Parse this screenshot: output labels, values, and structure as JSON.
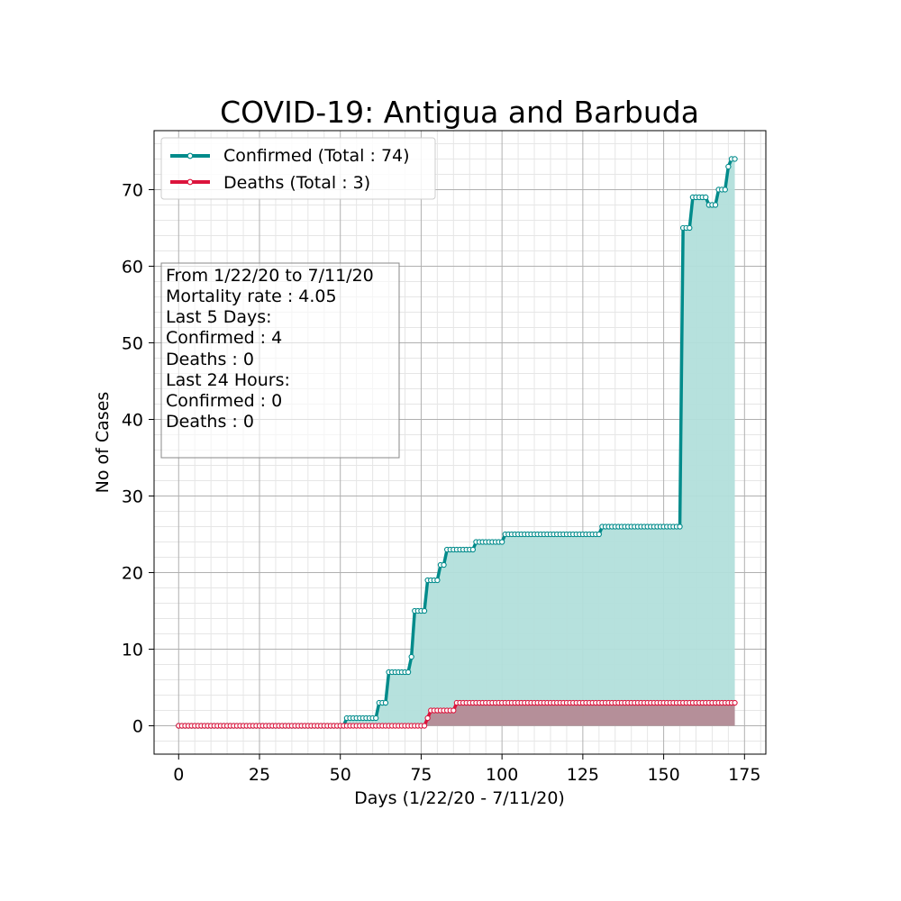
{
  "chart_data": {
    "type": "line",
    "title": "COVID-19: Antigua and Barbuda",
    "xlabel": "Days (1/22/20 - 7/11/20)",
    "ylabel": "No of Cases",
    "xlim": [
      -7.6,
      181.6
    ],
    "ylim": [
      -3.7,
      77.7
    ],
    "x_ticks": [
      0,
      25,
      50,
      75,
      100,
      125,
      150,
      175
    ],
    "y_ticks": [
      0,
      10,
      20,
      30,
      40,
      50,
      60,
      70
    ],
    "grid": true,
    "legend_position": "top-left",
    "series": [
      {
        "name": "Confirmed (Total : 74)",
        "color": "#008B8B",
        "fill": "#b2dfdb",
        "steps": [
          [
            0,
            0
          ],
          [
            52,
            1
          ],
          [
            62,
            3
          ],
          [
            65,
            7
          ],
          [
            72,
            9
          ],
          [
            73,
            15
          ],
          [
            77,
            19
          ],
          [
            81,
            21
          ],
          [
            83,
            23
          ],
          [
            92,
            24
          ],
          [
            101,
            25
          ],
          [
            131,
            26
          ],
          [
            156,
            65
          ],
          [
            159,
            69
          ],
          [
            164,
            68
          ],
          [
            167,
            70
          ],
          [
            170,
            73
          ],
          [
            171,
            74
          ]
        ],
        "last_day": 172
      },
      {
        "name": "Deaths (Total : 3)",
        "color": "#DC143C",
        "fill": "#b58a95",
        "steps": [
          [
            0,
            0
          ],
          [
            77,
            1
          ],
          [
            78,
            2
          ],
          [
            86,
            3
          ]
        ],
        "last_day": 172
      }
    ]
  },
  "info_box": {
    "lines": [
      "From 1/22/20 to 7/11/20",
      "Mortality rate : 4.05",
      "Last 5 Days:",
      "Confirmed : 4",
      "Deaths : 0",
      "Last 24 Hours:",
      "Confirmed : 0",
      "Deaths : 0"
    ]
  }
}
